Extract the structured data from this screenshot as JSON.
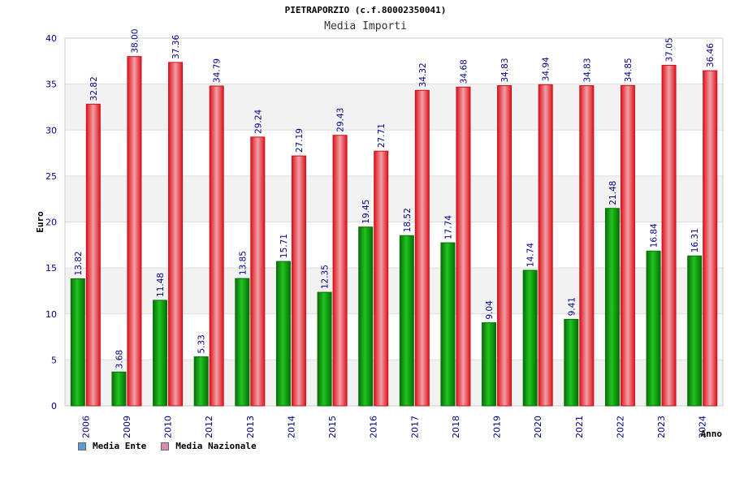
{
  "header": {
    "title": "PIETRAPORZIO (c.f.80002350041)",
    "subtitle": "Media Importi"
  },
  "legend": [
    {
      "label": "Media Ente",
      "color": "#5b9bd5"
    },
    {
      "label": "Media Nazionale",
      "color": "#d98cb0"
    }
  ],
  "colors": {
    "ente": "#1aa31a",
    "nazionale": "#e8232a",
    "value_label": "#00008b",
    "axis_label": "#00008b"
  },
  "chart_data": {
    "type": "bar",
    "title": "PIETRAPORZIO (c.f.80002350041)",
    "subtitle": "Media Importi",
    "xlabel": "Anno",
    "ylabel": "Euro",
    "ylim": [
      0,
      40
    ],
    "yticks": [
      0,
      5,
      10,
      15,
      20,
      25,
      30,
      35,
      40
    ],
    "grid": true,
    "legend_position": "bottom-left",
    "categories": [
      "2006",
      "2009",
      "2010",
      "2012",
      "2013",
      "2014",
      "2015",
      "2016",
      "2017",
      "2018",
      "2019",
      "2020",
      "2021",
      "2022",
      "2023",
      "2024"
    ],
    "series": [
      {
        "name": "Media Ente",
        "values": [
          13.82,
          3.68,
          11.48,
          5.33,
          13.85,
          15.71,
          12.35,
          19.45,
          18.52,
          17.74,
          9.04,
          14.74,
          9.41,
          21.48,
          16.84,
          16.31
        ]
      },
      {
        "name": "Media Nazionale",
        "values": [
          32.82,
          38.0,
          37.36,
          34.79,
          29.24,
          27.19,
          29.43,
          27.71,
          34.32,
          34.68,
          34.83,
          34.94,
          34.83,
          34.85,
          37.05,
          36.46
        ]
      }
    ],
    "value_labels": [
      [
        "13.82",
        "3.68",
        "11.48",
        "5.33",
        "13.85",
        "15.71",
        "12.35",
        "19.45",
        "18.52",
        "17.74",
        "9.04",
        "14.74",
        "9.41",
        "21.48",
        "16.84",
        "16.31"
      ],
      [
        "32.82",
        "38.00",
        "37.36",
        "34.79",
        "29.24",
        "27.19",
        "29.43",
        "27.71",
        "34.32",
        "34.68",
        "34.83",
        "34.94",
        "34.83",
        "34.85",
        "37.05",
        "36.46"
      ]
    ]
  }
}
